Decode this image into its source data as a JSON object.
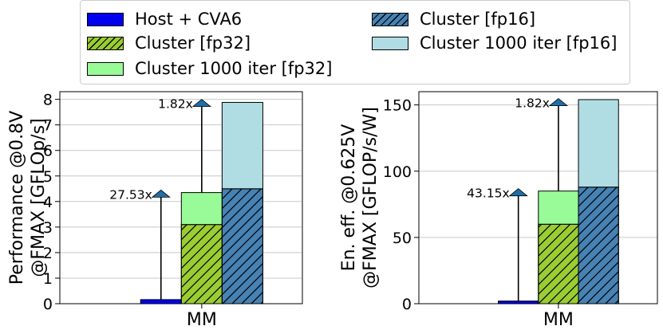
{
  "legend": {
    "items": [
      {
        "label": "Host + CVA6",
        "color": "#0000ee",
        "hatch": false
      },
      {
        "label": "Cluster [fp32]",
        "color": "#9acd32",
        "hatch": true
      },
      {
        "label": "Cluster 1000 iter [fp32]",
        "color": "#98fb98",
        "hatch": false
      },
      {
        "label": "Cluster [fp16]",
        "color": "#4682b4",
        "hatch": true
      },
      {
        "label": "Cluster 1000 iter [fp16]",
        "color": "#b0dde4",
        "hatch": false
      }
    ]
  },
  "chart_data": [
    {
      "type": "bar",
      "categories": [
        "MM"
      ],
      "ylabel_line1": "Performance @0.8V",
      "ylabel_line2": "@FMAX [GFLOp/s]",
      "xlabel": "",
      "ylim": [
        0,
        8.3
      ],
      "yticks": [
        0,
        1,
        2,
        3,
        4,
        5,
        6,
        7,
        8
      ],
      "grid": "horizontal",
      "series": [
        {
          "name": "Host + CVA6",
          "values": [
            0.16
          ]
        },
        {
          "name": "Cluster [fp32]",
          "values": [
            3.1
          ]
        },
        {
          "name": "Cluster 1000 iter [fp32]",
          "values": [
            4.35
          ]
        },
        {
          "name": "Cluster [fp16]",
          "values": [
            4.5
          ]
        },
        {
          "name": "Cluster 1000 iter [fp16]",
          "values": [
            7.88
          ]
        }
      ],
      "annotations": [
        {
          "text": "27.53x",
          "arrow_from": 0.16,
          "arrow_to": 4.2
        },
        {
          "text": "1.82x",
          "arrow_from": 4.35,
          "arrow_to": 7.75
        }
      ]
    },
    {
      "type": "bar",
      "categories": [
        "MM"
      ],
      "ylabel_line1": "En. eff. @0.625V",
      "ylabel_line2": "@FMAX [GFLOP/s/W]",
      "xlabel": "",
      "ylim": [
        0,
        160
      ],
      "yticks": [
        0,
        50,
        100,
        150
      ],
      "grid": "horizontal",
      "series": [
        {
          "name": "Host + CVA6",
          "values": [
            2
          ]
        },
        {
          "name": "Cluster [fp32]",
          "values": [
            60
          ]
        },
        {
          "name": "Cluster 1000 iter [fp32]",
          "values": [
            85
          ]
        },
        {
          "name": "Cluster [fp16]",
          "values": [
            88
          ]
        },
        {
          "name": "Cluster 1000 iter [fp16]",
          "values": [
            154
          ]
        }
      ],
      "annotations": [
        {
          "text": "43.15x",
          "arrow_from": 2,
          "arrow_to": 82
        },
        {
          "text": "1.82x",
          "arrow_from": 85,
          "arrow_to": 150
        }
      ]
    }
  ]
}
